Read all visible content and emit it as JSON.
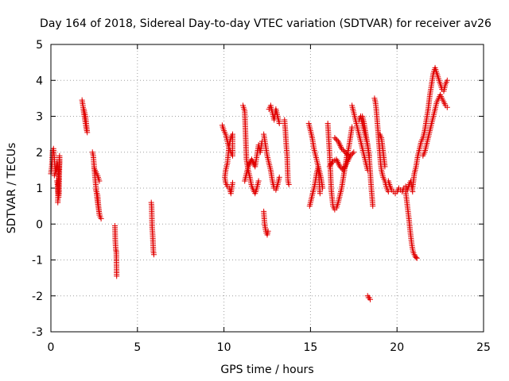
{
  "chart_data": {
    "type": "scatter",
    "title": "Day 164 of 2018, Sidereal Day-to-day VTEC variation (SDTVAR) for receiver av26",
    "xlabel": "GPS time / hours",
    "ylabel": "SDTVAR / TECUs",
    "xlim": [
      0,
      25
    ],
    "ylim": [
      -3,
      5
    ],
    "xticks": [
      0,
      5,
      10,
      15,
      20,
      25
    ],
    "yticks": [
      -3,
      -2,
      -1,
      0,
      1,
      2,
      3,
      4,
      5
    ],
    "grid": true,
    "marker": "+",
    "marker_color": "#e00000",
    "series": [
      {
        "name": "SDTVAR",
        "segments": [
          {
            "x": [
              0.0,
              0.05,
              0.1,
              0.15,
              0.2,
              0.25,
              0.3,
              0.35,
              0.4
            ],
            "y": [
              1.4,
              1.6,
              2.05,
              2.1,
              1.8,
              1.5,
              1.55,
              1.7,
              1.65
            ]
          },
          {
            "x": [
              0.2,
              0.3,
              0.4
            ],
            "y": [
              1.35,
              1.5,
              1.6
            ]
          },
          {
            "x": [
              0.35,
              0.38,
              0.4,
              0.42,
              0.45,
              0.47,
              0.5,
              0.5,
              0.45,
              0.4
            ],
            "y": [
              1.2,
              1.1,
              0.95,
              0.85,
              0.75,
              0.85,
              1.9,
              1.7,
              1.5,
              0.6
            ]
          },
          {
            "x": [
              1.8,
              1.85,
              1.9,
              1.95,
              2.0,
              2.05,
              2.1,
              2.0,
              1.9
            ],
            "y": [
              3.45,
              3.3,
              3.1,
              2.95,
              2.8,
              2.65,
              2.55,
              3.0,
              3.2
            ]
          },
          {
            "x": [
              2.4,
              2.45,
              2.5,
              2.55,
              2.6,
              2.65,
              2.7,
              2.75,
              2.8,
              2.85,
              2.9
            ],
            "y": [
              2.0,
              1.9,
              1.6,
              1.3,
              1.05,
              0.8,
              0.6,
              0.45,
              0.3,
              0.2,
              0.15
            ]
          },
          {
            "x": [
              2.5,
              2.6,
              2.7,
              2.8
            ],
            "y": [
              1.55,
              1.45,
              1.35,
              1.2
            ]
          },
          {
            "x": [
              2.6,
              2.7,
              2.75,
              2.8
            ],
            "y": [
              0.95,
              0.8,
              0.5,
              0.25
            ]
          },
          {
            "x": [
              3.7,
              3.72,
              3.75,
              3.78,
              3.8
            ],
            "y": [
              -0.05,
              -0.45,
              -0.7,
              -0.78,
              -1.45
            ]
          },
          {
            "x": [
              5.8,
              5.82,
              5.85,
              5.88,
              5.9,
              5.92,
              5.95
            ],
            "y": [
              0.6,
              0.5,
              -0.1,
              -0.3,
              -0.5,
              -0.75,
              -0.85
            ]
          },
          {
            "x": [
              9.9,
              10.0,
              10.1,
              10.2,
              10.3,
              10.4,
              10.5,
              10.5,
              10.4,
              10.3,
              10.2,
              10.1,
              10.05,
              10.1,
              10.2,
              10.3,
              10.35,
              10.4,
              10.5
            ],
            "y": [
              2.75,
              2.6,
              2.5,
              2.3,
              2.1,
              2.0,
              1.9,
              2.5,
              2.4,
              2.2,
              1.7,
              1.5,
              1.3,
              1.15,
              1.05,
              1.0,
              0.95,
              0.85,
              1.15
            ]
          },
          {
            "x": [
              11.1,
              11.2,
              11.3,
              11.4,
              11.5,
              11.6,
              11.7,
              11.8,
              11.9,
              12.0
            ],
            "y": [
              3.3,
              3.15,
              1.8,
              1.5,
              1.3,
              1.05,
              0.95,
              0.85,
              1.0,
              1.2
            ]
          },
          {
            "x": [
              11.2,
              11.4,
              11.6,
              11.8,
              12.0,
              12.1,
              12.2
            ],
            "y": [
              1.2,
              1.6,
              1.8,
              1.6,
              2.2,
              2.0,
              2.3
            ]
          },
          {
            "x": [
              12.3,
              12.35,
              12.4,
              12.45,
              12.5,
              12.55
            ],
            "y": [
              0.35,
              0.0,
              -0.15,
              -0.25,
              -0.3,
              -0.2
            ]
          },
          {
            "x": [
              12.3,
              12.4,
              12.5,
              12.6,
              12.7,
              12.8,
              12.9,
              13.0,
              13.1,
              13.2
            ],
            "y": [
              2.5,
              2.2,
              1.9,
              1.7,
              1.5,
              1.2,
              1.0,
              0.95,
              1.1,
              1.3
            ]
          },
          {
            "x": [
              12.6,
              12.7,
              12.8,
              12.9,
              13.0,
              13.1,
              13.2
            ],
            "y": [
              3.2,
              3.3,
              3.1,
              2.9,
              3.2,
              3.0,
              2.8
            ]
          },
          {
            "x": [
              13.5,
              13.55,
              13.6,
              13.65,
              13.7,
              13.75
            ],
            "y": [
              2.9,
              2.6,
              2.2,
              1.9,
              1.2,
              1.1
            ]
          },
          {
            "x": [
              14.9,
              15.0,
              15.1,
              15.2,
              15.3,
              15.4,
              15.5,
              15.6,
              15.7
            ],
            "y": [
              2.8,
              2.6,
              2.4,
              2.1,
              1.9,
              1.7,
              1.5,
              1.3,
              1.0
            ]
          },
          {
            "x": [
              14.95,
              15.05,
              15.15,
              15.25,
              15.35,
              15.45,
              15.55
            ],
            "y": [
              0.5,
              0.7,
              0.9,
              1.1,
              1.4,
              1.6,
              0.85
            ]
          },
          {
            "x": [
              16.0,
              16.05,
              16.1,
              16.15,
              16.2,
              16.3,
              16.4,
              16.5,
              16.6,
              16.7,
              16.8,
              16.9,
              17.0,
              17.1,
              17.2,
              17.3,
              17.4
            ],
            "y": [
              2.8,
              2.4,
              2.0,
              1.5,
              0.95,
              0.5,
              0.4,
              0.45,
              0.6,
              0.8,
              1.0,
              1.3,
              1.6,
              1.9,
              2.1,
              2.4,
              2.7
            ]
          },
          {
            "x": [
              16.1,
              16.3,
              16.5,
              16.7,
              16.9,
              17.1,
              17.3,
              17.5
            ],
            "y": [
              1.6,
              1.75,
              1.8,
              1.6,
              1.5,
              1.7,
              1.9,
              2.0
            ]
          },
          {
            "x": [
              16.4,
              16.6,
              16.8,
              17.0,
              17.2
            ],
            "y": [
              2.4,
              2.3,
              2.1,
              2.0,
              1.9
            ]
          },
          {
            "x": [
              17.4,
              17.5,
              17.6,
              17.7,
              17.8,
              17.9,
              18.0,
              18.1,
              18.2,
              18.3
            ],
            "y": [
              3.3,
              3.1,
              2.9,
              2.7,
              2.5,
              2.3,
              2.1,
              1.9,
              1.7,
              1.5
            ]
          },
          {
            "x": [
              17.8,
              17.9,
              18.0,
              18.1,
              18.2,
              18.3,
              18.4,
              18.5,
              18.6
            ],
            "y": [
              2.9,
              3.0,
              2.8,
              2.6,
              2.4,
              2.2,
              1.8,
              1.1,
              0.5
            ]
          },
          {
            "x": [
              18.0,
              18.1,
              18.2,
              18.3,
              18.4
            ],
            "y": [
              3.0,
              2.8,
              2.5,
              2.2,
              1.9
            ]
          },
          {
            "x": [
              18.3,
              18.35,
              18.4,
              18.45
            ],
            "y": [
              -2.0,
              -2.05,
              -2.05,
              -2.1
            ]
          },
          {
            "x": [
              18.7,
              18.75,
              18.8,
              18.85,
              18.9,
              18.95,
              19.0,
              19.05,
              19.1,
              19.2,
              19.3,
              19.4,
              19.5
            ],
            "y": [
              3.5,
              3.4,
              3.2,
              2.9,
              2.6,
              2.3,
              2.0,
              1.7,
              1.5,
              1.3,
              1.2,
              1.0,
              0.9
            ]
          },
          {
            "x": [
              19.0,
              19.1,
              19.15,
              19.2,
              19.25,
              19.3
            ],
            "y": [
              2.5,
              2.4,
              2.2,
              2.0,
              1.8,
              1.6
            ]
          },
          {
            "x": [
              19.5,
              19.6,
              19.7,
              19.8,
              19.9,
              20.0,
              20.1,
              20.2,
              20.3,
              20.4,
              20.5,
              20.6,
              20.7,
              20.8,
              20.9
            ],
            "y": [
              1.2,
              1.05,
              0.95,
              0.9,
              0.85,
              0.9,
              1.0,
              0.95,
              0.9,
              1.0,
              1.05,
              0.95,
              1.1,
              1.2,
              0.9
            ]
          },
          {
            "x": [
              20.5,
              20.55,
              20.6,
              20.65,
              20.7,
              20.75,
              20.8,
              20.85,
              20.9,
              20.95,
              21.0,
              21.05,
              21.1,
              21.15
            ],
            "y": [
              0.9,
              0.7,
              0.5,
              0.3,
              0.1,
              -0.15,
              -0.35,
              -0.55,
              -0.7,
              -0.8,
              -0.85,
              -0.9,
              -0.93,
              -0.95
            ]
          },
          {
            "x": [
              20.9,
              21.0,
              21.1,
              21.2,
              21.3,
              21.4,
              21.5,
              21.6,
              21.7,
              21.8,
              21.9,
              22.0,
              22.1,
              22.2,
              22.3,
              22.4,
              22.5,
              22.6,
              22.7,
              22.8,
              22.9
            ],
            "y": [
              1.0,
              1.4,
              1.6,
              1.9,
              2.1,
              2.3,
              2.4,
              2.6,
              2.9,
              3.2,
              3.6,
              3.9,
              4.2,
              4.35,
              4.2,
              4.05,
              3.9,
              3.75,
              3.7,
              3.9,
              4.0
            ]
          },
          {
            "x": [
              21.5,
              21.6,
              21.7,
              21.8,
              21.9,
              22.0,
              22.1,
              22.2,
              22.3,
              22.4,
              22.5,
              22.6,
              22.7,
              22.8,
              22.9
            ],
            "y": [
              1.9,
              2.0,
              2.2,
              2.4,
              2.6,
              2.8,
              3.0,
              3.2,
              3.4,
              3.5,
              3.6,
              3.5,
              3.4,
              3.3,
              3.25
            ]
          }
        ]
      }
    ]
  }
}
